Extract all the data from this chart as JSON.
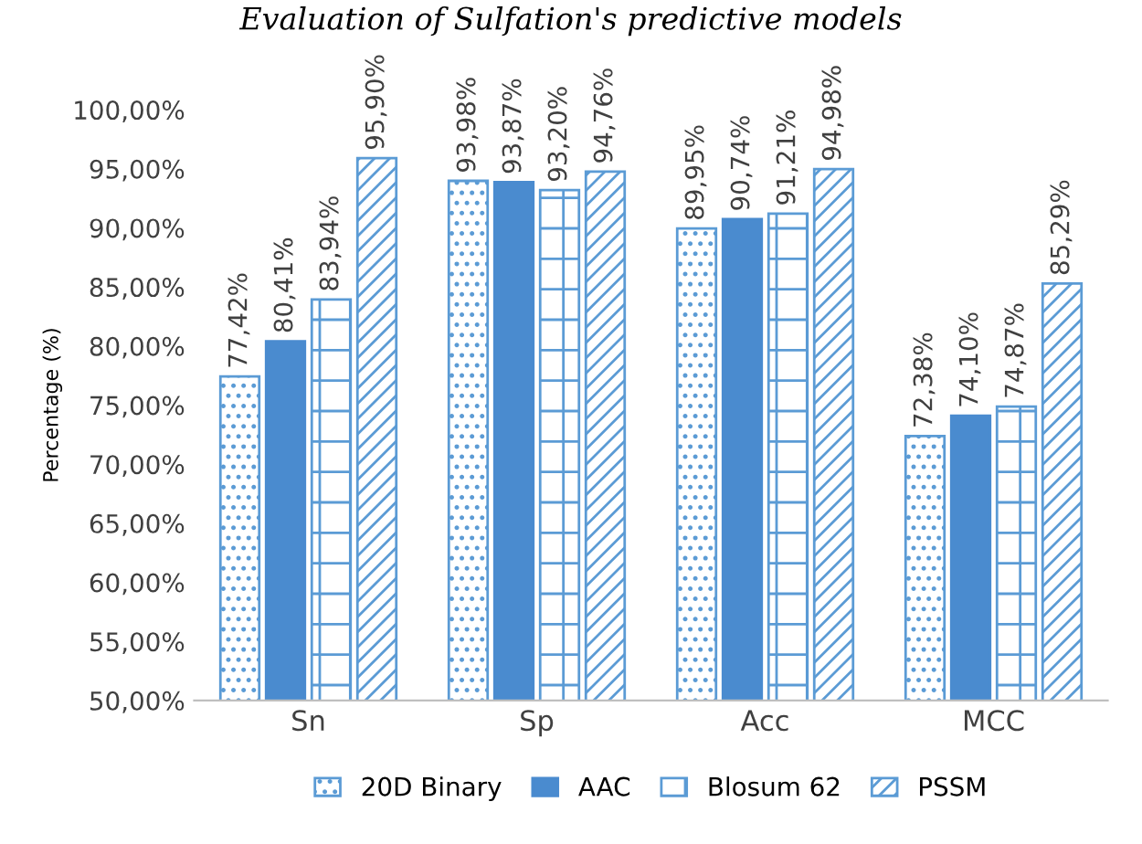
{
  "chart_data": {
    "type": "bar",
    "title": "Evaluation of Sulfation's predictive models",
    "ylabel": "Percentage (%)",
    "categories": [
      "Sn",
      "Sp",
      "Acc",
      "MCC"
    ],
    "series": [
      {
        "name": "20D Binary",
        "color": "#5b9bd5",
        "values": [
          77.42,
          93.98,
          89.95,
          72.38
        ],
        "value_labels": [
          "77,42%",
          "93,98%",
          "89,95%",
          "72,38%"
        ]
      },
      {
        "name": "AAC",
        "color": "#4a8bcf",
        "values": [
          80.41,
          93.87,
          90.74,
          74.1
        ],
        "value_labels": [
          "80,41%",
          "93,87%",
          "90,74%",
          "74,10%"
        ]
      },
      {
        "name": "Blosum 62",
        "color": "#5b9bd5",
        "values": [
          83.94,
          93.2,
          91.21,
          74.87
        ],
        "value_labels": [
          "83,94%",
          "93,20%",
          "91,21%",
          "74,87%"
        ]
      },
      {
        "name": "PSSM",
        "color": "#5b9bd5",
        "values": [
          95.9,
          94.76,
          94.98,
          85.29
        ],
        "value_labels": [
          "95,90%",
          "94,76%",
          "94,98%",
          "85,29%"
        ]
      }
    ],
    "ylim": [
      50,
      100
    ],
    "yticks": [
      {
        "value": 50,
        "label": "50,00%"
      },
      {
        "value": 55,
        "label": "55,00%"
      },
      {
        "value": 60,
        "label": "60,00%"
      },
      {
        "value": 65,
        "label": "65,00%"
      },
      {
        "value": 70,
        "label": "70,00%"
      },
      {
        "value": 75,
        "label": "75,00%"
      },
      {
        "value": 80,
        "label": "80,00%"
      },
      {
        "value": 85,
        "label": "85,00%"
      },
      {
        "value": 90,
        "label": "90,00%"
      },
      {
        "value": 95,
        "label": "95,00%"
      },
      {
        "value": 100,
        "label": "100,00%"
      }
    ],
    "grid": false,
    "legend": "bottom"
  }
}
